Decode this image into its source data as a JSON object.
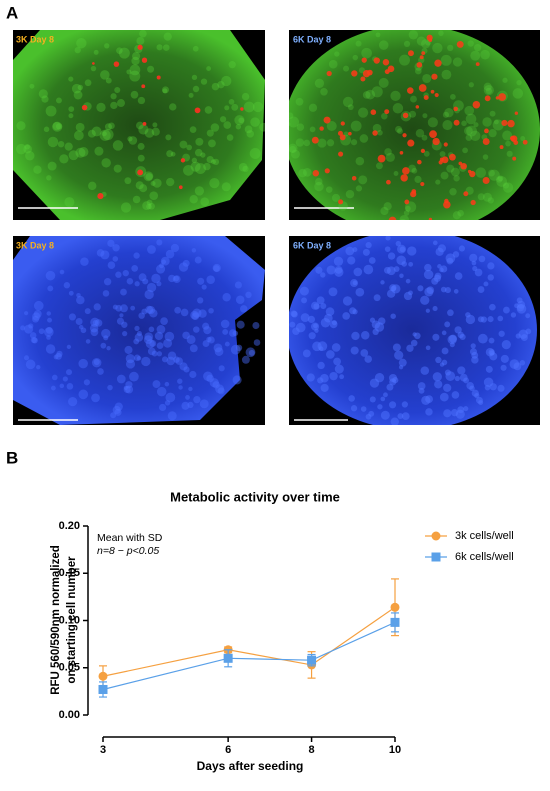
{
  "panels": {
    "a_label": "A",
    "b_label": "B",
    "images": [
      "3K Day 8",
      "6K Day 8",
      "3K Day 8",
      "6K Day 8"
    ]
  },
  "chart_data": {
    "type": "line",
    "title": "Metabolic activity over time",
    "x_label": "Days after seeding",
    "y_label": [
      "RFU 560/590nm normalized",
      "on starting cell number"
    ],
    "annotations": [
      "Mean with SD",
      "n=8 − p<0.05"
    ],
    "x": [
      3,
      6,
      8,
      10
    ],
    "series": [
      {
        "name": "3k cells/well",
        "color": "#f5a040",
        "marker": "circle",
        "values": [
          0.041,
          0.069,
          0.053,
          0.114
        ],
        "errors": [
          0.011,
          0.003,
          0.014,
          0.03
        ]
      },
      {
        "name": "6k cells/well",
        "color": "#5aa0e8",
        "marker": "square",
        "values": [
          0.027,
          0.06,
          0.058,
          0.098
        ],
        "errors": [
          0.008,
          0.009,
          0.006,
          0.01
        ]
      }
    ],
    "xlim": [
      3,
      10
    ],
    "xticks": [
      3,
      6,
      8,
      10
    ],
    "ylim": [
      0,
      0.2
    ],
    "yticks": [
      {
        "value": 0,
        "label": "0.00"
      },
      {
        "value": 0.05,
        "label": "0.05"
      },
      {
        "value": 0.1,
        "label": "0.10"
      },
      {
        "value": 0.15,
        "label": "0.15"
      },
      {
        "value": 0.2,
        "label": "0.20"
      }
    ],
    "legend": "right"
  }
}
